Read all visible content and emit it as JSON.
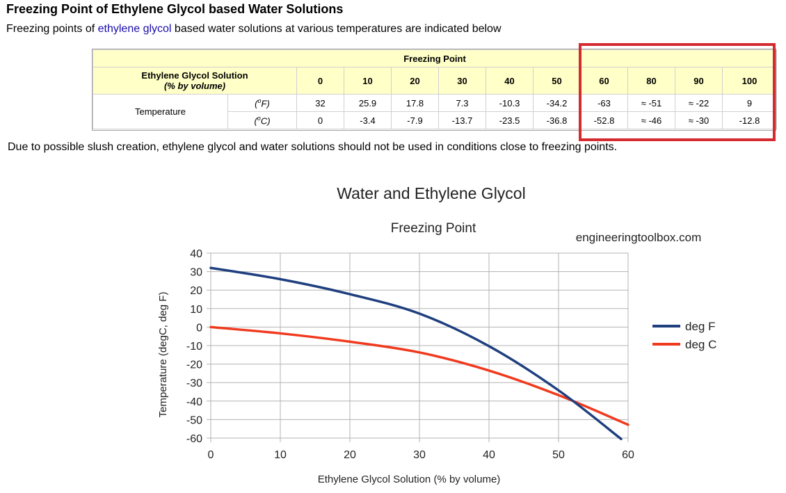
{
  "page": {
    "title": "Freezing Point of Ethylene Glycol based Water Solutions",
    "intro_before": "Freezing points of ",
    "intro_link": "ethylene glycol",
    "intro_after": " based water solutions at various temperatures are indicated below",
    "note": "Due to possible slush creation, ethylene glycol and water solutions should not be used in conditions close to freezing points."
  },
  "table": {
    "group_header": "Freezing Point",
    "solution_label": "Ethylene Glycol Solution",
    "solution_sublabel": "(% by volume)",
    "columns": [
      "0",
      "10",
      "20",
      "30",
      "40",
      "50",
      "60",
      "80",
      "90",
      "100"
    ],
    "row_label": "Temperature",
    "units": {
      "f_pre": "(",
      "f_sup": "o",
      "f_post": "F)",
      "c_pre": "(",
      "c_sup": "o",
      "c_post": "C)"
    },
    "fahrenheit": [
      "32",
      "25.9",
      "17.8",
      "7.3",
      "-10.3",
      "-34.2",
      "-63",
      "≈ -51",
      "≈ -22",
      "9"
    ],
    "celsius": [
      "0",
      "-3.4",
      "-7.9",
      "-13.7",
      "-23.5",
      "-36.8",
      "-52.8",
      "≈ -46",
      "≈ -30",
      "-12.8"
    ]
  },
  "chart_data": {
    "type": "line",
    "title": "Water and Ethylene Glycol",
    "subtitle": "Freezing Point",
    "watermark": "engineeringtoolbox.com",
    "xlabel": "Ethylene Glycol Solution (% by volume)",
    "ylabel": "Temperature (degC, deg F)",
    "xlim": [
      0,
      60
    ],
    "ylim": [
      -60,
      40
    ],
    "xticks": [
      0,
      10,
      20,
      30,
      40,
      50,
      60
    ],
    "yticks": [
      40,
      30,
      20,
      10,
      0,
      -10,
      -20,
      -30,
      -40,
      -50,
      -60
    ],
    "grid": true,
    "legend_position": "right",
    "series": [
      {
        "name": "deg F",
        "color": "#1f3f7f",
        "points": [
          [
            0,
            32
          ],
          [
            10,
            25.9
          ],
          [
            20,
            17.8
          ],
          [
            30,
            7.3
          ],
          [
            40,
            -10.3
          ],
          [
            50,
            -34.2
          ],
          [
            59,
            -60.5
          ]
        ]
      },
      {
        "name": "deg C",
        "color": "#f03a1e",
        "points": [
          [
            0,
            0
          ],
          [
            10,
            -3.4
          ],
          [
            20,
            -7.9
          ],
          [
            30,
            -13.7
          ],
          [
            40,
            -23.5
          ],
          [
            50,
            -36.8
          ],
          [
            60,
            -52.8
          ]
        ]
      }
    ]
  }
}
